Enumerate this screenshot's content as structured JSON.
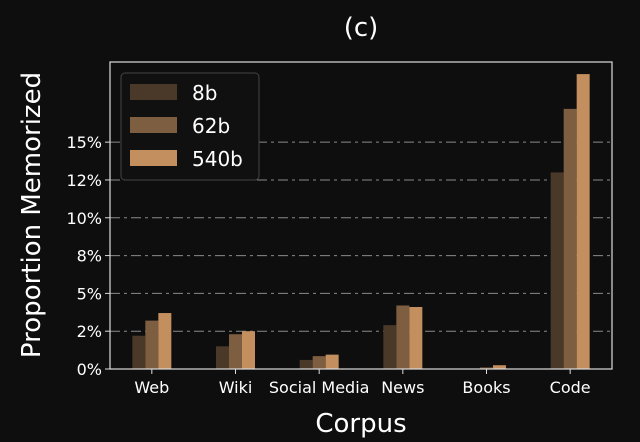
{
  "chart_data": {
    "type": "bar",
    "title": "(c)",
    "xlabel": "Corpus",
    "ylabel": "Proportion Memorized",
    "categories": [
      "Web",
      "Wiki",
      "Social Media",
      "News",
      "Books",
      "Code"
    ],
    "series": [
      {
        "name": "8b",
        "color": "#4a3828",
        "values": [
          2.2,
          1.5,
          0.6,
          2.9,
          0.0,
          13.0
        ]
      },
      {
        "name": "62b",
        "color": "#7d5e40",
        "values": [
          3.2,
          2.3,
          0.85,
          4.2,
          0.1,
          17.2
        ]
      },
      {
        "name": "540b",
        "color": "#c38f5e",
        "values": [
          3.7,
          2.5,
          0.95,
          4.1,
          0.25,
          19.5
        ]
      }
    ],
    "ylim": [
      0,
      20.3
    ],
    "yticks": [
      0,
      2.5,
      5,
      7.5,
      10,
      12.5,
      15
    ],
    "ytick_labels": [
      "0%",
      "2%",
      "5%",
      "8%",
      "10%",
      "12%",
      "15%"
    ],
    "grid": "horizontal dashed",
    "legend_position": "top-left"
  }
}
